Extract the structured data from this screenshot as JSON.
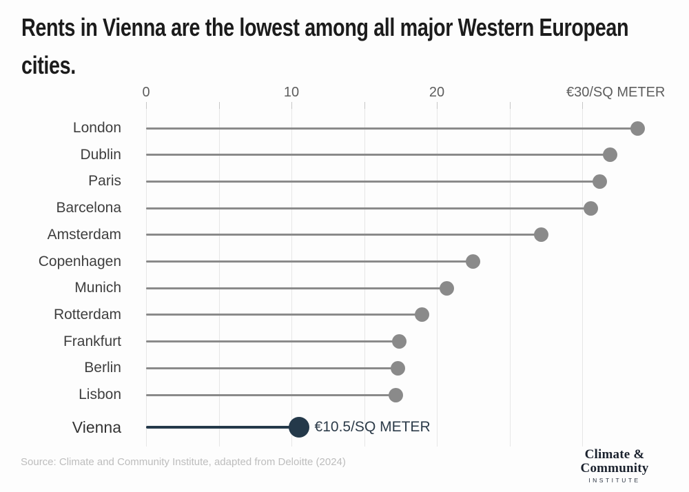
{
  "title_lines": [
    "Rents in Vienna are the lowest among all major Western European",
    "cities."
  ],
  "chart_data": {
    "type": "lollipop",
    "title": "Rents in Vienna are the lowest among all major Western European cities.",
    "unit": "EUR per square meter",
    "categories": [
      "London",
      "Dublin",
      "Paris",
      "Barcelona",
      "Amsterdam",
      "Copenhagen",
      "Munich",
      "Rotterdam",
      "Frankfurt",
      "Berlin",
      "Lisbon",
      "Vienna"
    ],
    "values": [
      33.8,
      31.9,
      31.2,
      30.6,
      27.2,
      22.5,
      20.7,
      19.0,
      17.4,
      17.3,
      17.2,
      10.5
    ],
    "highlight_category": "Vienna",
    "highlight_annotation": "€10.5/SQ METER",
    "x_axis": {
      "ticks": [
        0,
        10,
        20,
        30
      ],
      "tick_labels": [
        "0",
        "10",
        "20",
        "€30/SQ METER"
      ],
      "minor_ticks": [
        5,
        15,
        25
      ],
      "range": [
        0,
        35
      ]
    },
    "grid": true,
    "legend": false,
    "colors": {
      "default": "#8a8a8a",
      "highlight": "#24394a",
      "grid": "#e6e6e6"
    }
  },
  "footer": {
    "source": "Source: Climate and Community Institute, adapted from Deloitte (2024)",
    "logo": {
      "line1": "Climate &",
      "line2": "Community",
      "line3": "INSTITUTE"
    }
  }
}
